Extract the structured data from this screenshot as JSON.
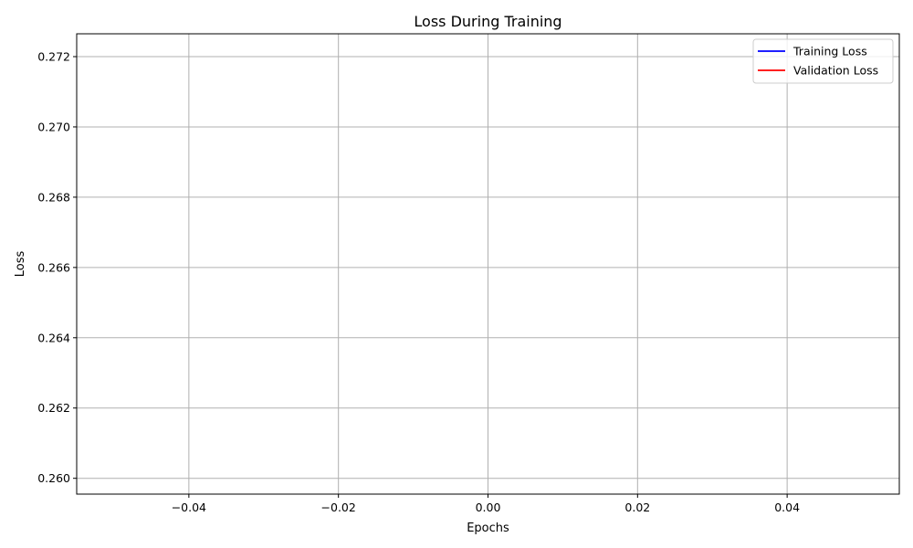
{
  "chart_data": {
    "type": "line",
    "title": "Loss During Training",
    "xlabel": "Epochs",
    "ylabel": "Loss",
    "xlim": [
      -0.055,
      0.055
    ],
    "ylim": [
      0.25955,
      0.27265
    ],
    "xticks": [
      -0.04,
      -0.02,
      0.0,
      0.02,
      0.04
    ],
    "xtick_labels": [
      "−0.04",
      "−0.02",
      "0.00",
      "0.02",
      "0.04"
    ],
    "yticks": [
      0.26,
      0.262,
      0.264,
      0.266,
      0.268,
      0.27,
      0.272
    ],
    "ytick_labels": [
      "0.260",
      "0.262",
      "0.264",
      "0.266",
      "0.268",
      "0.270",
      "0.272"
    ],
    "grid": true,
    "legend_position": "top-right",
    "series": [
      {
        "name": "Training Loss",
        "color": "#0000ff",
        "x": [],
        "y": []
      },
      {
        "name": "Validation Loss",
        "color": "#ff0000",
        "x": [],
        "y": []
      }
    ]
  }
}
